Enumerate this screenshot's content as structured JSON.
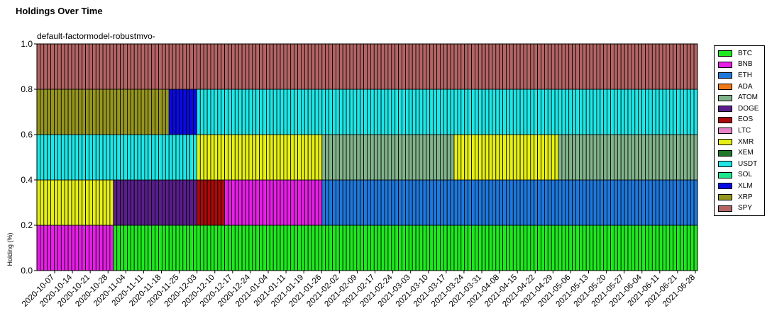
{
  "title": "Holdings Over Time",
  "subtitle": "default-factormodel-robustmvo-",
  "chart_data": {
    "type": "bar",
    "stacked": true,
    "ylabel": "Holding (%)",
    "xlabel": "",
    "ylim": [
      0,
      1.0
    ],
    "yticks": [
      "0.0",
      "0.2",
      "0.4",
      "0.6",
      "0.8",
      "1.0"
    ],
    "grid": false,
    "legend_position": "right",
    "period_count": 190,
    "xtick_labels": [
      "2020-10-07",
      "2020-10-14",
      "2020-10-21",
      "2020-10-28",
      "2020-11-04",
      "2020-11-11",
      "2020-11-18",
      "2020-11-25",
      "2020-12-03",
      "2020-12-10",
      "2020-12-17",
      "2020-12-24",
      "2021-01-04",
      "2021-01-11",
      "2021-01-19",
      "2021-01-26",
      "2021-02-02",
      "2021-02-09",
      "2021-02-17",
      "2021-02-24",
      "2021-03-03",
      "2021-03-10",
      "2021-03-17",
      "2021-03-24",
      "2021-03-31",
      "2021-04-08",
      "2021-04-15",
      "2021-04-22",
      "2021-04-29",
      "2021-05-06",
      "2021-05-13",
      "2021-05-20",
      "2021-05-27",
      "2021-06-04",
      "2021-06-11",
      "2021-06-21",
      "2021-06-28"
    ],
    "series": [
      {
        "name": "BTC",
        "color": "#1ee81e"
      },
      {
        "name": "BNB",
        "color": "#e61ee6"
      },
      {
        "name": "ETH",
        "color": "#1e78dc"
      },
      {
        "name": "ADA",
        "color": "#f07814"
      },
      {
        "name": "ATOM",
        "color": "#82b48c"
      },
      {
        "name": "DOGE",
        "color": "#5a1e8c"
      },
      {
        "name": "EOS",
        "color": "#aa0a0a"
      },
      {
        "name": "LTC",
        "color": "#e682c8"
      },
      {
        "name": "XMR",
        "color": "#e6f014"
      },
      {
        "name": "XEM",
        "color": "#1e7828"
      },
      {
        "name": "USDT",
        "color": "#1ee6e6"
      },
      {
        "name": "SOL",
        "color": "#1ee68c"
      },
      {
        "name": "XLM",
        "color": "#0a0ae6"
      },
      {
        "name": "XRP",
        "color": "#96961e"
      },
      {
        "name": "SPY",
        "color": "#b46464"
      }
    ],
    "segments": [
      {
        "from": 0,
        "to": 3,
        "stack": [
          [
            "BNB",
            0.2
          ],
          [
            "XMR",
            0.2
          ],
          [
            "USDT",
            0.2
          ],
          [
            "XRP",
            0.2
          ],
          [
            "SPY",
            0.2
          ]
        ]
      },
      {
        "from": 3,
        "to": 22,
        "stack": [
          [
            "BNB",
            0.2
          ],
          [
            "XMR",
            0.2
          ],
          [
            "USDT",
            0.2
          ],
          [
            "XRP",
            0.2
          ],
          [
            "SPY",
            0.2
          ]
        ]
      },
      {
        "from": 22,
        "to": 38,
        "stack": [
          [
            "BTC",
            0.2
          ],
          [
            "DOGE",
            0.2
          ],
          [
            "USDT",
            0.2
          ],
          [
            "XRP",
            0.2
          ],
          [
            "SPY",
            0.2
          ]
        ]
      },
      {
        "from": 38,
        "to": 46,
        "stack": [
          [
            "BTC",
            0.2
          ],
          [
            "DOGE",
            0.2
          ],
          [
            "USDT",
            0.2
          ],
          [
            "XLM",
            0.2
          ],
          [
            "SPY",
            0.2
          ]
        ]
      },
      {
        "from": 46,
        "to": 54,
        "stack": [
          [
            "BTC",
            0.2
          ],
          [
            "EOS",
            0.2
          ],
          [
            "XMR",
            0.2
          ],
          [
            "USDT",
            0.2
          ],
          [
            "SPY",
            0.2
          ]
        ]
      },
      {
        "from": 54,
        "to": 64,
        "stack": [
          [
            "BTC",
            0.2
          ],
          [
            "BNB",
            0.2
          ],
          [
            "XMR",
            0.2
          ],
          [
            "USDT",
            0.2
          ],
          [
            "SPY",
            0.2
          ]
        ]
      },
      {
        "from": 64,
        "to": 82,
        "stack": [
          [
            "BTC",
            0.2
          ],
          [
            "BNB",
            0.2
          ],
          [
            "XMR",
            0.2
          ],
          [
            "USDT",
            0.2
          ],
          [
            "SPY",
            0.2
          ]
        ]
      },
      {
        "from": 82,
        "to": 120,
        "stack": [
          [
            "BTC",
            0.2
          ],
          [
            "ETH",
            0.2
          ],
          [
            "ATOM",
            0.2
          ],
          [
            "USDT",
            0.2
          ],
          [
            "SPY",
            0.2
          ]
        ]
      },
      {
        "from": 120,
        "to": 150,
        "stack": [
          [
            "BTC",
            0.2
          ],
          [
            "ETH",
            0.2
          ],
          [
            "XMR",
            0.2
          ],
          [
            "USDT",
            0.2
          ],
          [
            "SPY",
            0.2
          ]
        ]
      },
      {
        "from": 150,
        "to": 190,
        "stack": [
          [
            "BTC",
            0.2
          ],
          [
            "ETH",
            0.2
          ],
          [
            "ATOM",
            0.2
          ],
          [
            "USDT",
            0.2
          ],
          [
            "SPY",
            0.2
          ]
        ]
      }
    ]
  }
}
